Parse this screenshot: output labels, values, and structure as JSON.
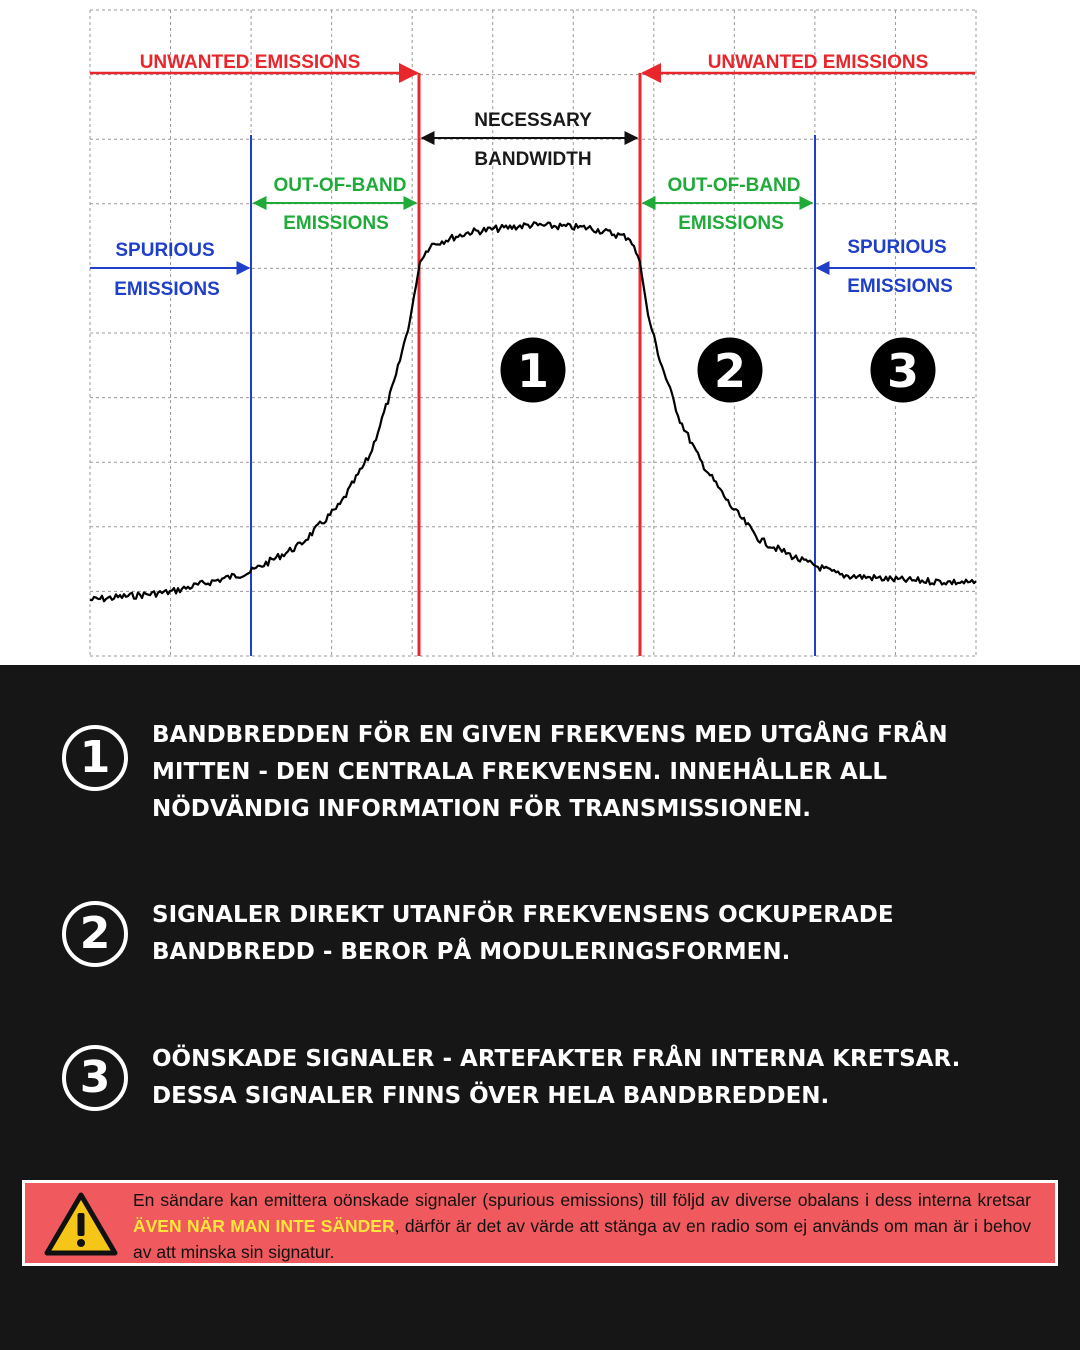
{
  "diagram": {
    "labels": {
      "unwanted_left": "UNWANTED EMISSIONS",
      "unwanted_right": "UNWANTED EMISSIONS",
      "necessary_line1": "NECESSARY",
      "necessary_line2": "BANDWIDTH",
      "oob_left_line1": "OUT-OF-BAND",
      "oob_left_line2": "EMISSIONS",
      "oob_right_line1": "OUT-OF-BAND",
      "oob_right_line2": "EMISSIONS",
      "spurious_left_line1": "SPURIOUS",
      "spurious_left_line2": "EMISSIONS",
      "spurious_right_line1": "SPURIOUS",
      "spurious_right_line2": "EMISSIONS"
    },
    "markers": [
      "1",
      "2",
      "3"
    ],
    "colors": {
      "red": "#e8262b",
      "green": "#1faa3a",
      "blue": "#1f3fc8",
      "grid": "#9a9a9a",
      "signal": "#000000"
    }
  },
  "items": [
    {
      "number": "1",
      "text": "BANDBREDDEN FÖR EN GIVEN FREKVENS MED UTGÅNG FRÅN MITTEN - DEN CENTRALA FREKVENSEN. INNEHÅLLER ALL NÖDVÄNDIG INFORMATION FÖR TRANSMISSIONEN."
    },
    {
      "number": "2",
      "text": "SIGNALER DIREKT UTANFÖR FREKVENSENS OCKUPERADE BANDBREDD - BEROR PÅ MODULERINGSFORMEN."
    },
    {
      "number": "3",
      "text": "OÖNSKADE SIGNALER - ARTEFAKTER FRÅN INTERNA KRETSAR. DESSA SIGNALER FINNS ÖVER HELA BANDBREDDEN."
    }
  ],
  "warning": {
    "icon": "warning-triangle-icon",
    "text_before": "En sändare kan emittera oönskade signaler (spurious emissions) till följd av diverse obalans i dess interna kretsar ",
    "highlight": "ÄVEN NÄR MAN INTE SÄNDER",
    "text_after": ", därför är det av värde att stänga av en radio som ej används om man är i behov av att minska sin signatur.",
    "colors": {
      "background": "#f0595d",
      "highlight": "#ffe63a"
    }
  }
}
